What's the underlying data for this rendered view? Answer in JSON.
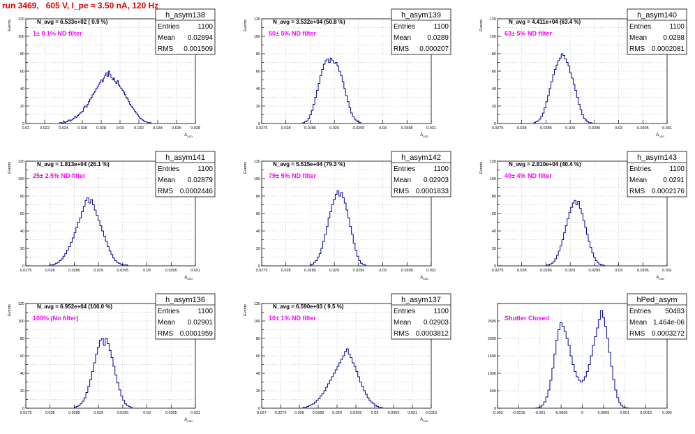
{
  "run_title": "run 3469,   605 V, I_pe ≈ 3.50 nA, 120 Hz",
  "colors": {
    "title": "#e00000",
    "hist": "#000099",
    "label": "#ff00ff",
    "axis": "#000000",
    "grid": "#aaaaaa"
  },
  "stats_labels": {
    "entries": "Entries",
    "mean": "Mean",
    "rms": "RMS"
  },
  "chart_data": [
    {
      "type": "histogram",
      "name": "h_asym138",
      "ylabel": "Events",
      "xlabel": "A_LED",
      "navg": "N_avg = 6.533e+02 ( 0.9 %)",
      "label": "1± 0.1% ND filter",
      "entries": "1100",
      "mean": "0.02894",
      "rms": "0.001509",
      "xlim": [
        0.02,
        0.038
      ],
      "ylim": [
        0,
        120
      ],
      "xticks": [
        0.02,
        0.022,
        0.024,
        0.026,
        0.028,
        0.03,
        0.032,
        0.034,
        0.036,
        0.038
      ],
      "xticklabels": [
        "0.02",
        "0.022",
        "0.024",
        "0.026",
        "0.028",
        "0.03",
        "0.032",
        "0.034",
        "0.036",
        "0.038"
      ],
      "yticks": [
        0,
        10,
        20,
        30,
        40,
        50,
        60,
        70,
        80,
        90,
        100,
        110,
        120
      ],
      "yticklabels": [
        "0",
        "",
        "20",
        "",
        "40",
        "",
        "60",
        "",
        "80",
        "",
        "100",
        "",
        "120"
      ],
      "bins": {
        "range": [
          0.0236,
          0.0334
        ],
        "values": [
          1,
          1,
          0,
          2,
          1,
          2,
          3,
          4,
          3,
          4,
          5,
          6,
          8,
          7,
          9,
          10,
          12,
          13,
          14,
          18,
          20,
          19,
          22,
          25,
          28,
          30,
          33,
          35,
          37,
          40,
          42,
          45,
          47,
          50,
          48,
          52,
          55,
          58,
          54,
          60,
          56,
          53,
          50,
          52,
          48,
          46,
          49,
          44,
          42,
          40,
          38,
          36,
          33,
          30,
          28,
          25,
          22,
          20,
          18,
          16,
          14,
          12,
          10,
          8,
          6,
          5,
          4,
          3,
          2,
          2,
          1,
          1,
          1,
          0
        ]
      }
    },
    {
      "type": "histogram",
      "name": "h_asym139",
      "ylabel": "Events",
      "xlabel": "A_LED",
      "navg": "N_avg = 3.532e+04 (50.8 %)",
      "label": "50± 5% ND filter",
      "entries": "1100",
      "mean": "0.0289",
      "rms": "0.000207",
      "xlim": [
        0.0275,
        0.031
      ],
      "ylim": [
        0,
        120
      ],
      "xticks": [
        0.0275,
        0.028,
        0.0285,
        0.029,
        0.0295,
        0.03,
        0.0305,
        0.031
      ],
      "xticklabels": [
        "0.0275",
        "0.028",
        "0.0285",
        "0.029",
        "0.0295",
        "0.03",
        "0.0305",
        "0.031"
      ],
      "yticks": [
        0,
        10,
        20,
        30,
        40,
        50,
        60,
        70,
        80,
        90,
        100,
        110,
        120
      ],
      "yticklabels": [
        "0",
        "",
        "20",
        "",
        "40",
        "",
        "60",
        "",
        "80",
        "",
        "100",
        "",
        "120"
      ],
      "bins": {
        "range": [
          0.02835,
          0.02955
        ],
        "values": [
          1,
          2,
          3,
          6,
          10,
          15,
          22,
          30,
          38,
          46,
          55,
          62,
          68,
          72,
          74,
          70,
          75,
          72,
          69,
          70,
          66,
          60,
          55,
          48,
          40,
          32,
          25,
          18,
          12,
          8,
          5,
          3,
          2,
          1
        ]
      }
    },
    {
      "type": "histogram",
      "name": "h_asym140",
      "ylabel": "Events",
      "xlabel": "A_LED",
      "navg": "N_avg = 4.411e+04 (63.4 %)",
      "label": "63± 5% ND filter",
      "entries": "1100",
      "mean": "0.0288",
      "rms": "0.0002081",
      "xlim": [
        0.0275,
        0.031
      ],
      "ylim": [
        0,
        120
      ],
      "xticks": [
        0.0275,
        0.028,
        0.0285,
        0.029,
        0.0295,
        0.03,
        0.0305,
        0.031
      ],
      "xticklabels": [
        "0.0275",
        "0.028",
        "0.0285",
        "0.029",
        "0.0295",
        "0.03",
        "0.0305",
        "0.031"
      ],
      "yticks": [
        0,
        10,
        20,
        30,
        40,
        50,
        60,
        70,
        80,
        90,
        100,
        110,
        120
      ],
      "yticklabels": [
        "0",
        "",
        "20",
        "",
        "40",
        "",
        "60",
        "",
        "80",
        "",
        "100",
        "",
        "120"
      ],
      "bins": {
        "range": [
          0.02825,
          0.02945
        ],
        "values": [
          1,
          2,
          3,
          5,
          8,
          12,
          18,
          25,
          32,
          40,
          48,
          56,
          62,
          67,
          72,
          75,
          80,
          78,
          74,
          70,
          66,
          58,
          52,
          45,
          38,
          30,
          22,
          16,
          10,
          6,
          4,
          2,
          1,
          1
        ]
      }
    },
    {
      "type": "histogram",
      "name": "h_asym141",
      "ylabel": "Events",
      "xlabel": "A_LED",
      "navg": "N_avg = 1.813e+04 (26.1 %)",
      "label": "25± 2.5% ND filter",
      "entries": "1100",
      "mean": "0.02879",
      "rms": "0.0002446",
      "xlim": [
        0.0275,
        0.031
      ],
      "ylim": [
        0,
        120
      ],
      "xticks": [
        0.0275,
        0.028,
        0.0285,
        0.029,
        0.0295,
        0.03,
        0.0305,
        0.031
      ],
      "xticklabels": [
        "0.0275",
        "0.028",
        "0.0285",
        "0.029",
        "0.0295",
        "0.03",
        "0.0305",
        "0.031"
      ],
      "yticks": [
        0,
        10,
        20,
        30,
        40,
        50,
        60,
        70,
        80,
        90,
        100,
        110,
        120
      ],
      "yticklabels": [
        "0",
        "",
        "20",
        "",
        "40",
        "",
        "60",
        "",
        "80",
        "",
        "100",
        "",
        "120"
      ],
      "bins": {
        "range": [
          0.028,
          0.0296
        ],
        "values": [
          1,
          1,
          2,
          3,
          4,
          6,
          8,
          11,
          14,
          18,
          22,
          27,
          32,
          38,
          44,
          50,
          55,
          62,
          68,
          75,
          78,
          72,
          76,
          70,
          64,
          58,
          52,
          46,
          40,
          34,
          28,
          22,
          17,
          13,
          9,
          6,
          4,
          3,
          2,
          1,
          1,
          1
        ]
      }
    },
    {
      "type": "histogram",
      "name": "h_asym142",
      "ylabel": "Events",
      "xlabel": "A_LED",
      "navg": "N_avg = 5.515e+04 (79.3 %)",
      "label": "79± 5% ND filter",
      "entries": "1100",
      "mean": "0.02903",
      "rms": "0.0001833",
      "xlim": [
        0.0275,
        0.031
      ],
      "ylim": [
        0,
        120
      ],
      "xticks": [
        0.0275,
        0.028,
        0.0285,
        0.029,
        0.0295,
        0.03,
        0.0305,
        0.031
      ],
      "xticklabels": [
        "0.0275",
        "0.028",
        "0.0285",
        "0.029",
        "0.0295",
        "0.03",
        "0.0305",
        "0.031"
      ],
      "yticks": [
        0,
        10,
        20,
        30,
        40,
        50,
        60,
        70,
        80,
        90,
        100,
        110,
        120
      ],
      "yticklabels": [
        "0",
        "",
        "20",
        "",
        "40",
        "",
        "60",
        "",
        "80",
        "",
        "100",
        "",
        "120"
      ],
      "bins": {
        "range": [
          0.0285,
          0.02965
        ],
        "values": [
          1,
          2,
          4,
          6,
          10,
          14,
          20,
          28,
          36,
          45,
          55,
          62,
          70,
          76,
          82,
          86,
          80,
          84,
          78,
          72,
          64,
          55,
          45,
          36,
          26,
          18,
          11,
          6,
          3,
          2,
          1
        ]
      }
    },
    {
      "type": "histogram",
      "name": "h_asym143",
      "ylabel": "Events",
      "xlabel": "A_LED",
      "navg": "N_avg = 2.810e+04 (40.4 %)",
      "label": "40± 4% ND filter",
      "entries": "1100",
      "mean": "0.0291",
      "rms": "0.0002176",
      "xlim": [
        0.0275,
        0.031
      ],
      "ylim": [
        0,
        120
      ],
      "xticks": [
        0.0275,
        0.028,
        0.0285,
        0.029,
        0.0295,
        0.03,
        0.0305,
        0.031
      ],
      "xticklabels": [
        "0.0275",
        "0.028",
        "0.0285",
        "0.029",
        "0.0295",
        "0.03",
        "0.0305",
        "0.031"
      ],
      "yticks": [
        0,
        10,
        20,
        30,
        40,
        50,
        60,
        70,
        80,
        90,
        100,
        110,
        120
      ],
      "yticklabels": [
        "0",
        "",
        "20",
        "",
        "40",
        "",
        "60",
        "",
        "80",
        "",
        "100",
        "",
        "120"
      ],
      "bins": {
        "range": [
          0.0285,
          0.0297
        ],
        "values": [
          1,
          1,
          2,
          3,
          5,
          8,
          12,
          17,
          23,
          30,
          38,
          46,
          54,
          61,
          67,
          72,
          75,
          70,
          74,
          66,
          60,
          52,
          44,
          36,
          28,
          21,
          15,
          10,
          6,
          4,
          2,
          1,
          1
        ]
      }
    },
    {
      "type": "histogram",
      "name": "h_asym136",
      "ylabel": "Events",
      "xlabel": "A_LED",
      "navg": "N_avg = 6.952e+04 (100.0 %)",
      "label": "100% (No filter)",
      "entries": "1100",
      "mean": "0.02901",
      "rms": "0.0001959",
      "xlim": [
        0.0275,
        0.031
      ],
      "ylim": [
        0,
        120
      ],
      "xticks": [
        0.0275,
        0.028,
        0.0285,
        0.029,
        0.0295,
        0.03,
        0.0305,
        0.031
      ],
      "xticklabels": [
        "0.0275",
        "0.028",
        "0.0285",
        "0.029",
        "0.0295",
        "0.03",
        "0.0305",
        "0.031"
      ],
      "yticks": [
        0,
        10,
        20,
        30,
        40,
        50,
        60,
        70,
        80,
        90,
        100,
        110,
        120
      ],
      "yticklabels": [
        "0",
        "",
        "20",
        "",
        "40",
        "",
        "60",
        "",
        "80",
        "",
        "100",
        "",
        "120"
      ],
      "bins": {
        "range": [
          0.0285,
          0.0297
        ],
        "values": [
          1,
          2,
          3,
          5,
          8,
          12,
          18,
          25,
          33,
          42,
          52,
          62,
          70,
          78,
          80,
          72,
          80,
          74,
          66,
          58,
          48,
          38,
          29,
          21,
          14,
          9,
          5,
          3,
          2,
          1
        ]
      }
    },
    {
      "type": "histogram",
      "name": "h_asym137",
      "ylabel": "Events",
      "xlabel": "A_LED",
      "navg": "N_avg = 6.590e+03 ( 9.5 %)",
      "label": "10± 1% ND filter",
      "entries": "1100",
      "mean": "0.02903",
      "rms": "0.0003812",
      "xlim": [
        0.027,
        0.0315
      ],
      "ylim": [
        0,
        120
      ],
      "xticks": [
        0.027,
        0.0275,
        0.028,
        0.0285,
        0.029,
        0.0295,
        0.03,
        0.0305,
        0.031,
        0.0315
      ],
      "xticklabels": [
        "0.027",
        "0.0275",
        "0.028",
        "0.0285",
        "0.029",
        "0.0295",
        "0.03",
        "0.0305",
        "0.031",
        "0.0315"
      ],
      "yticks": [
        0,
        10,
        20,
        30,
        40,
        50,
        60,
        70,
        80,
        90,
        100,
        110,
        120
      ],
      "yticklabels": [
        "0",
        "",
        "20",
        "",
        "40",
        "",
        "60",
        "",
        "80",
        "",
        "100",
        "",
        "120"
      ],
      "bins": {
        "range": [
          0.0281,
          0.0302
        ],
        "values": [
          1,
          1,
          2,
          3,
          4,
          5,
          7,
          9,
          11,
          14,
          17,
          20,
          24,
          28,
          32,
          36,
          40,
          44,
          48,
          52,
          56,
          60,
          65,
          68,
          62,
          58,
          52,
          48,
          42,
          36,
          30,
          25,
          20,
          16,
          12,
          9,
          7,
          5,
          3,
          2,
          1,
          1
        ]
      }
    },
    {
      "type": "histogram",
      "name": "hPed_asym",
      "ylabel": "",
      "xlabel": "",
      "navg": "",
      "label": "Shutter Closed",
      "entries": "50483",
      "mean": "1.464e-06",
      "rms": "0.0003272",
      "xlim": [
        -0.002,
        0.002
      ],
      "ylim": [
        0,
        3000
      ],
      "xticks": [
        -0.002,
        -0.0015,
        -0.001,
        -0.0005,
        0,
        0.0005,
        0.001,
        0.0015,
        0.002
      ],
      "xticklabels": [
        "-0.002",
        "-0.0015",
        "-0.001",
        "-0.0005",
        "0",
        "0.0005",
        "0.001",
        "0.0015",
        "0.002"
      ],
      "yticks": [
        0,
        500,
        1000,
        1500,
        2000,
        2500,
        3000
      ],
      "yticklabels": [
        "0",
        "500",
        "1000",
        "1500",
        "2000",
        "2500",
        ""
      ],
      "bins": {
        "range": [
          -0.0011,
          0.0011
        ],
        "values": [
          5,
          15,
          40,
          90,
          180,
          320,
          520,
          800,
          1150,
          1550,
          1950,
          2250,
          2450,
          2350,
          2200,
          2000,
          1800,
          1500,
          1250,
          1050,
          900,
          800,
          750,
          800,
          900,
          1050,
          1250,
          1500,
          1800,
          2050,
          2300,
          2550,
          2800,
          2600,
          2350,
          2000,
          1600,
          1200,
          820,
          520,
          300,
          160,
          80,
          35,
          12,
          4
        ]
      }
    }
  ]
}
